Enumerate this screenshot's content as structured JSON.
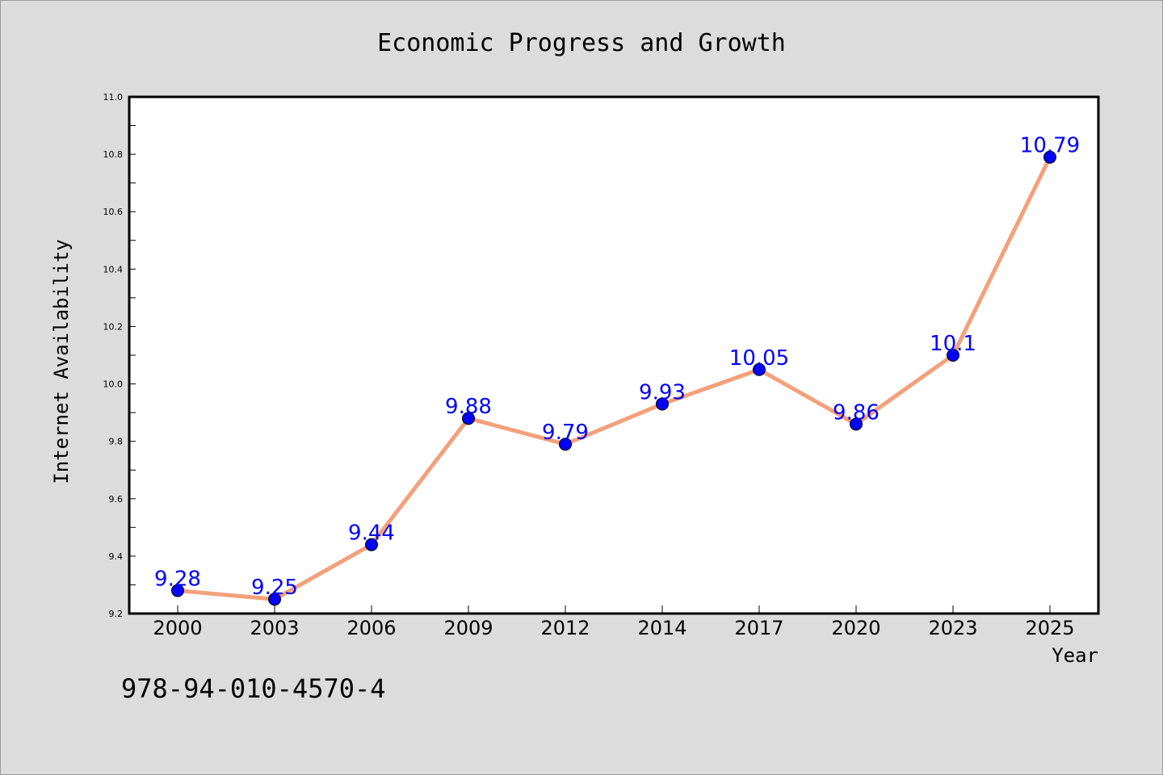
{
  "chart_data": {
    "type": "line",
    "title": "Economic Progress and Growth",
    "xlabel": "Year",
    "ylabel": "Internet Availability",
    "categories": [
      "2000",
      "2003",
      "2006",
      "2009",
      "2012",
      "2014",
      "2017",
      "2020",
      "2023",
      "2025"
    ],
    "series": [
      {
        "values": [
          9.28,
          9.25,
          9.44,
          9.88,
          9.79,
          9.93,
          10.05,
          9.86,
          10.1,
          10.79
        ],
        "labels": [
          "9.28",
          "9.25",
          "9.44",
          "9.88",
          "9.79",
          "9.93",
          "10.05",
          "9.86",
          "10.1",
          "10.79"
        ]
      }
    ],
    "ylim": [
      9.2,
      11.0
    ],
    "yticks": [
      "9.2",
      "9.4",
      "9.6",
      "9.8",
      "10.0",
      "10.2",
      "10.4",
      "10.6",
      "10.8",
      "11.0"
    ],
    "grid": false,
    "colors": {
      "line": "#f4a07a",
      "marker": "#0000ff",
      "data_label": "#0000ff",
      "background": "#dcdcdc",
      "plot_area": "#ffffff"
    }
  },
  "footer": {
    "code": "978-94-010-4570-4"
  }
}
